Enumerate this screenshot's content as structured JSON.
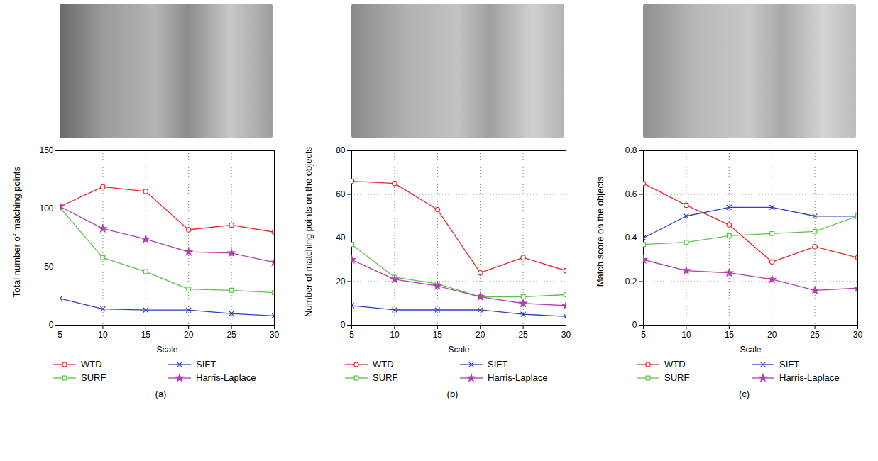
{
  "chart_data": [
    {
      "type": "line",
      "title": "(a)",
      "x_label": "Scale",
      "y_label": "Total number of matching points",
      "x": [
        5,
        10,
        15,
        20,
        25,
        30
      ],
      "xlim": [
        5,
        30
      ],
      "xticks": [
        5,
        10,
        15,
        20,
        25,
        30
      ],
      "ylim": [
        0,
        150
      ],
      "yticks": [
        0,
        50,
        100,
        150
      ],
      "grid": true,
      "legend": "bottom",
      "series": [
        {
          "name": "WTD",
          "color": "#e8262a",
          "marker": "circle",
          "values": [
            102,
            119,
            115,
            82,
            86,
            80
          ]
        },
        {
          "name": "SIFT",
          "color": "#2b3fbf",
          "marker": "times",
          "values": [
            23,
            14,
            13,
            13,
            10,
            8
          ]
        },
        {
          "name": "SURF",
          "color": "#5cc24a",
          "marker": "square",
          "values": [
            101,
            58,
            46,
            31,
            30,
            28
          ]
        },
        {
          "name": "Harris-Laplace",
          "color": "#b23fb0",
          "marker": "star",
          "values": [
            102,
            83,
            74,
            63,
            62,
            54
          ]
        }
      ]
    },
    {
      "type": "line",
      "title": "(b)",
      "x_label": "Scale",
      "y_label": "Number of matching points on the objects",
      "x": [
        5,
        10,
        15,
        20,
        25,
        30
      ],
      "xlim": [
        5,
        30
      ],
      "xticks": [
        5,
        10,
        15,
        20,
        25,
        30
      ],
      "ylim": [
        0,
        80
      ],
      "yticks": [
        0,
        20,
        40,
        60,
        80
      ],
      "grid": true,
      "legend": "bottom",
      "series": [
        {
          "name": "WTD",
          "color": "#e8262a",
          "marker": "circle",
          "values": [
            66,
            65,
            53,
            24,
            31,
            25
          ]
        },
        {
          "name": "SIFT",
          "color": "#2b3fbf",
          "marker": "times",
          "values": [
            9,
            7,
            7,
            7,
            5,
            4
          ]
        },
        {
          "name": "SURF",
          "color": "#5cc24a",
          "marker": "square",
          "values": [
            37,
            22,
            19,
            13,
            13,
            14
          ]
        },
        {
          "name": "Harris-Laplace",
          "color": "#b23fb0",
          "marker": "star",
          "values": [
            30,
            21,
            18,
            13,
            10,
            9
          ]
        }
      ]
    },
    {
      "type": "line",
      "title": "(c)",
      "x_label": "Scale",
      "y_label": "Match score on the objects",
      "x": [
        5,
        10,
        15,
        20,
        25,
        30
      ],
      "xlim": [
        5,
        30
      ],
      "xticks": [
        5,
        10,
        15,
        20,
        25,
        30
      ],
      "ylim": [
        0,
        0.8
      ],
      "yticks": [
        0,
        0.2,
        0.4,
        0.6,
        0.8
      ],
      "grid": true,
      "legend": "bottom",
      "series": [
        {
          "name": "WTD",
          "color": "#e8262a",
          "marker": "circle",
          "values": [
            0.65,
            0.55,
            0.46,
            0.29,
            0.36,
            0.31
          ]
        },
        {
          "name": "SIFT",
          "color": "#2b3fbf",
          "marker": "times",
          "values": [
            0.4,
            0.5,
            0.54,
            0.54,
            0.5,
            0.5
          ]
        },
        {
          "name": "SURF",
          "color": "#5cc24a",
          "marker": "square",
          "values": [
            0.37,
            0.38,
            0.41,
            0.42,
            0.43,
            0.5
          ]
        },
        {
          "name": "Harris-Laplace",
          "color": "#b23fb0",
          "marker": "star",
          "values": [
            0.3,
            0.25,
            0.24,
            0.21,
            0.16,
            0.17
          ]
        }
      ]
    }
  ]
}
